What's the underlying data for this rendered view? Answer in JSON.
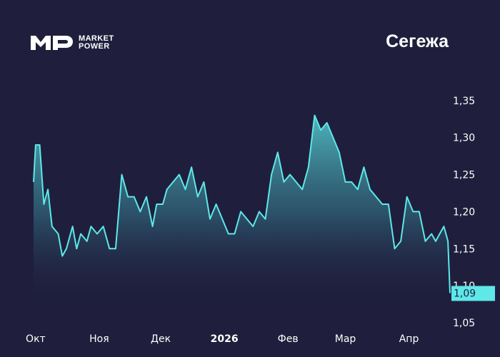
{
  "header": {
    "logo_lines": [
      "MARKET",
      "POWER"
    ],
    "title": "Сегежа"
  },
  "colors": {
    "background": "#1f1f3d",
    "line": "#5ee8e8",
    "label_bg": "#5ee8e8",
    "text": "#ffffff"
  },
  "chart_data": {
    "type": "area",
    "title": "Сегежа",
    "xlabel": "",
    "ylabel": "",
    "grid": false,
    "ylim": [
      1.05,
      1.37
    ],
    "y_ticks": [
      "1,05",
      "1,10",
      "1,15",
      "1,20",
      "1,25",
      "1,30",
      "1,35"
    ],
    "y_tick_values": [
      1.05,
      1.1,
      1.15,
      1.2,
      1.25,
      1.3,
      1.35
    ],
    "x_range": [
      "2025-09-30",
      "2026-04-21"
    ],
    "x_ticks": [
      {
        "label": "Окт",
        "date": "2025-10-01",
        "bold": false
      },
      {
        "label": "Ноя",
        "date": "2025-11-01",
        "bold": false
      },
      {
        "label": "Дек",
        "date": "2025-12-01",
        "bold": false
      },
      {
        "label": "2026",
        "date": "2026-01-01",
        "bold": true
      },
      {
        "label": "Фев",
        "date": "2026-02-01",
        "bold": false
      },
      {
        "label": "Мар",
        "date": "2026-03-01",
        "bold": false
      },
      {
        "label": "Апр",
        "date": "2026-04-01",
        "bold": false
      }
    ],
    "last_value_label": "1,09",
    "series": [
      {
        "x": [
          "2025-09-30",
          "2025-10-01",
          "2025-10-03",
          "2025-10-05",
          "2025-10-07",
          "2025-10-09",
          "2025-10-12",
          "2025-10-14",
          "2025-10-16",
          "2025-10-19",
          "2025-10-21",
          "2025-10-23",
          "2025-10-26",
          "2025-10-28",
          "2025-10-31",
          "2025-11-03",
          "2025-11-06",
          "2025-11-09",
          "2025-11-12",
          "2025-11-15",
          "2025-11-18",
          "2025-11-21",
          "2025-11-24",
          "2025-11-27",
          "2025-11-29",
          "2025-12-02",
          "2025-12-04",
          "2025-12-07",
          "2025-12-10",
          "2025-12-13",
          "2025-12-16",
          "2025-12-19",
          "2025-12-22",
          "2025-12-25",
          "2025-12-28",
          "2025-12-31",
          "2026-01-03",
          "2026-01-06",
          "2026-01-09",
          "2026-01-12",
          "2026-01-15",
          "2026-01-18",
          "2026-01-21",
          "2026-01-24",
          "2026-01-27",
          "2026-01-30",
          "2026-02-02",
          "2026-02-05",
          "2026-02-08",
          "2026-02-11",
          "2026-02-14",
          "2026-02-17",
          "2026-02-20",
          "2026-02-23",
          "2026-02-26",
          "2026-03-01",
          "2026-03-04",
          "2026-03-07",
          "2026-03-10",
          "2026-03-13",
          "2026-03-16",
          "2026-03-19",
          "2026-03-22",
          "2026-03-25",
          "2026-03-28",
          "2026-03-31",
          "2026-04-03",
          "2026-04-06",
          "2026-04-09",
          "2026-04-12",
          "2026-04-14",
          "2026-04-16",
          "2026-04-18",
          "2026-04-19",
          "2026-04-20",
          "2026-04-21"
        ],
        "y": [
          1.24,
          1.29,
          1.29,
          1.21,
          1.23,
          1.18,
          1.17,
          1.14,
          1.15,
          1.18,
          1.15,
          1.17,
          1.16,
          1.18,
          1.17,
          1.18,
          1.15,
          1.15,
          1.25,
          1.22,
          1.22,
          1.2,
          1.22,
          1.18,
          1.21,
          1.21,
          1.23,
          1.24,
          1.25,
          1.23,
          1.26,
          1.22,
          1.24,
          1.19,
          1.21,
          1.19,
          1.17,
          1.17,
          1.2,
          1.19,
          1.18,
          1.2,
          1.19,
          1.25,
          1.28,
          1.24,
          1.25,
          1.24,
          1.23,
          1.26,
          1.33,
          1.31,
          1.32,
          1.3,
          1.28,
          1.24,
          1.24,
          1.23,
          1.26,
          1.23,
          1.22,
          1.21,
          1.21,
          1.15,
          1.16,
          1.22,
          1.2,
          1.2,
          1.16,
          1.17,
          1.16,
          1.17,
          1.18,
          1.17,
          1.16,
          1.09
        ]
      }
    ]
  }
}
